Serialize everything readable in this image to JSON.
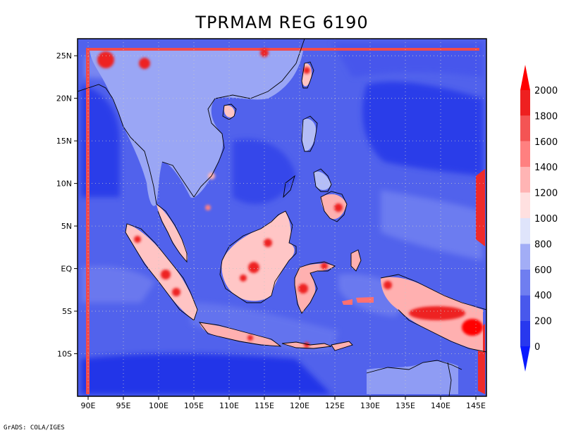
{
  "title": "TPRMAM REG 6190",
  "credit": "GrADS: COLA/IGES",
  "map": {
    "lon_range": [
      88.5,
      146.5
    ],
    "lat_range": [
      -15,
      27
    ],
    "lon_ticks": [
      {
        "v": 90,
        "label": "90E"
      },
      {
        "v": 95,
        "label": "95E"
      },
      {
        "v": 100,
        "label": "100E"
      },
      {
        "v": 105,
        "label": "105E"
      },
      {
        "v": 110,
        "label": "110E"
      },
      {
        "v": 115,
        "label": "115E"
      },
      {
        "v": 120,
        "label": "120E"
      },
      {
        "v": 125,
        "label": "125E"
      },
      {
        "v": 130,
        "label": "130E"
      },
      {
        "v": 135,
        "label": "135E"
      },
      {
        "v": 140,
        "label": "140E"
      },
      {
        "v": 145,
        "label": "145E"
      }
    ],
    "lat_ticks": [
      {
        "v": 25,
        "label": "25N"
      },
      {
        "v": 20,
        "label": "20N"
      },
      {
        "v": 15,
        "label": "15N"
      },
      {
        "v": 10,
        "label": "10N"
      },
      {
        "v": 5,
        "label": "5N"
      },
      {
        "v": 0,
        "label": "EQ"
      },
      {
        "v": -5,
        "label": "5S"
      },
      {
        "v": -10,
        "label": "10S"
      }
    ],
    "grid": true
  },
  "colorbar": {
    "levels": [
      "0",
      "200",
      "400",
      "600",
      "800",
      "1000",
      "1200",
      "1400",
      "1600",
      "1800",
      "2000"
    ],
    "colors": [
      "#0a1aff",
      "#2838ee",
      "#4858ec",
      "#6f7ef0",
      "#a2adf6",
      "#dfe4fb",
      "#ffe0e0",
      "#ffb4b4",
      "#ff8080",
      "#f45454",
      "#ee2020",
      "#ff0000"
    ]
  },
  "colors": {
    "ocean_deep": "#3a4cea",
    "ocean": "#5667ee",
    "land_low": "#a2adf6",
    "land_high": "#ff8080",
    "land_peak": "#ee2020",
    "coastline": "#000000"
  }
}
